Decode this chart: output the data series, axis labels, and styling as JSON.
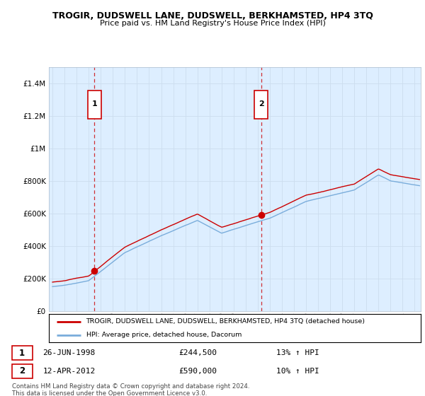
{
  "title": "TROGIR, DUDSWELL LANE, DUDSWELL, BERKHAMSTED, HP4 3TQ",
  "subtitle": "Price paid vs. HM Land Registry's House Price Index (HPI)",
  "xlim": [
    1994.7,
    2025.5
  ],
  "ylim": [
    0,
    1500000
  ],
  "yticks": [
    0,
    200000,
    400000,
    600000,
    800000,
    1000000,
    1200000,
    1400000
  ],
  "ytick_labels": [
    "£0",
    "£200K",
    "£400K",
    "£600K",
    "£800K",
    "£1M",
    "£1.2M",
    "£1.4M"
  ],
  "red_line_color": "#cc0000",
  "blue_line_color": "#7aaddb",
  "grid_color": "#ccddee",
  "plot_bg_color": "#ddeeff",
  "marker1_x": 1998.484,
  "marker1_y": 244500,
  "marker1_label": "1",
  "marker1_date": "26-JUN-1998",
  "marker1_price": "£244,500",
  "marker1_hpi": "13% ↑ HPI",
  "marker2_x": 2012.278,
  "marker2_y": 590000,
  "marker2_label": "2",
  "marker2_date": "12-APR-2012",
  "marker2_price": "£590,000",
  "marker2_hpi": "10% ↑ HPI",
  "vline1_x": 1998.484,
  "vline2_x": 2012.278,
  "legend_line1": "TROGIR, DUDSWELL LANE, DUDSWELL, BERKHAMSTED, HP4 3TQ (detached house)",
  "legend_line2": "HPI: Average price, detached house, Dacorum",
  "footnote": "Contains HM Land Registry data © Crown copyright and database right 2024.\nThis data is licensed under the Open Government Licence v3.0.",
  "background_color": "#ffffff"
}
